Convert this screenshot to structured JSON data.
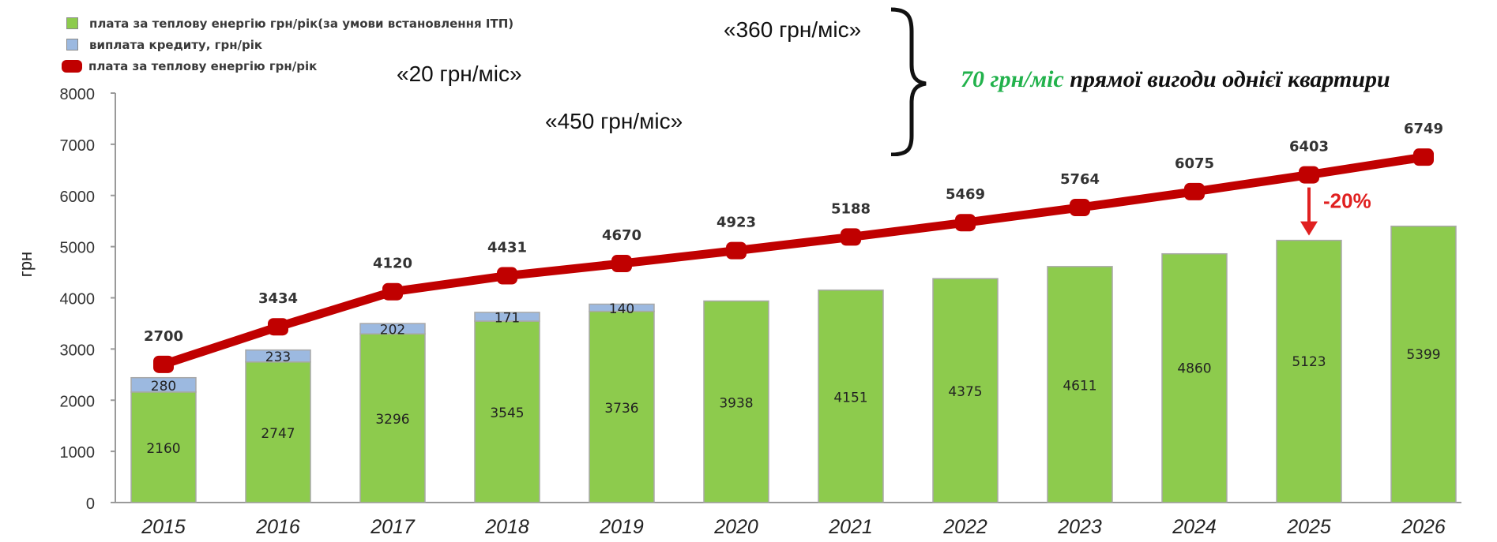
{
  "chart_data": {
    "type": "bar",
    "ylabel": "грн",
    "ylim": [
      0,
      8000
    ],
    "yticks": [
      0,
      1000,
      2000,
      3000,
      4000,
      5000,
      6000,
      7000,
      8000
    ],
    "categories": [
      "2015",
      "2016",
      "2017",
      "2018",
      "2019",
      "2020",
      "2021",
      "2022",
      "2023",
      "2024",
      "2025",
      "2026"
    ],
    "series": [
      {
        "name": "плата за теплову енергію грн/рік(за умови встановлення ІТП)",
        "kind": "stacked-bar",
        "color": "#8dcb4d",
        "values": [
          2160,
          2747,
          3296,
          3545,
          3736,
          3938,
          4151,
          4375,
          4611,
          4860,
          5123,
          5399
        ]
      },
      {
        "name": "виплата кредиту, грн/рік",
        "kind": "stacked-bar",
        "color": "#9cb9e0",
        "values": [
          280,
          233,
          202,
          171,
          140,
          null,
          null,
          null,
          null,
          null,
          null,
          null
        ]
      },
      {
        "name": "плата за теплову енергію грн/рік",
        "kind": "line",
        "color": "#c00000",
        "values": [
          2700,
          3434,
          4120,
          4431,
          4670,
          4923,
          5188,
          5469,
          5764,
          6075,
          6403,
          6749
        ]
      }
    ],
    "grid": false,
    "legend_position": "top-left",
    "annotations": {
      "note_a": "«360 грн/міс»",
      "note_b": "«20 грн/міс»",
      "note_c": "«450 грн/міс»",
      "benefit_green": "70 грн/міс",
      "benefit_text": "прямої вигоди однієї квартири",
      "reduction": "-20%"
    }
  }
}
